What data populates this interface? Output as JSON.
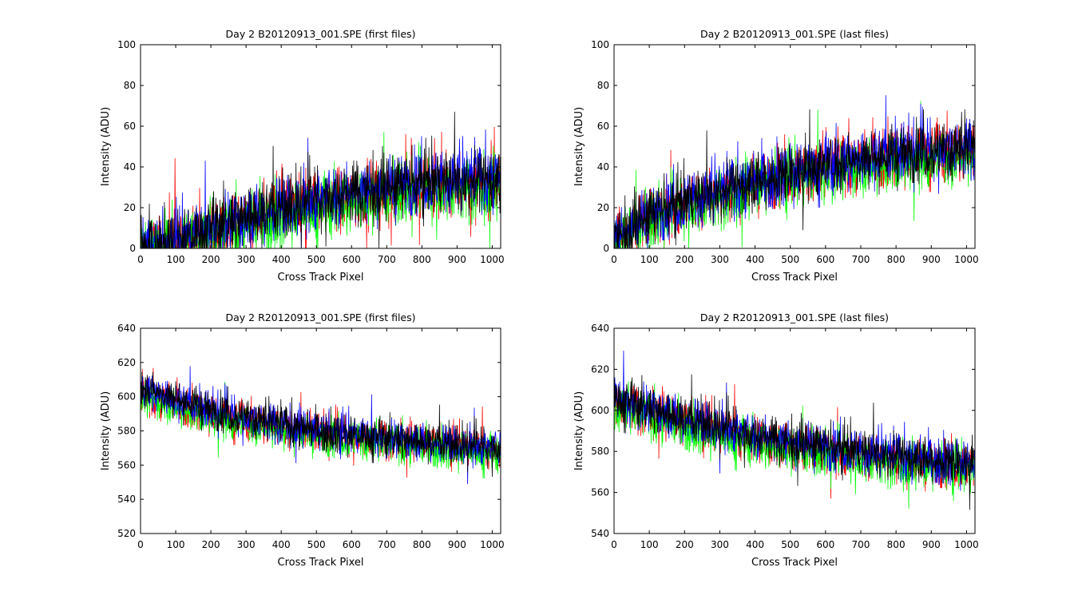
{
  "figure": {
    "background": "#ffffff",
    "axes_background": "#ffffff"
  },
  "chart_data": [
    {
      "type": "line",
      "title": "Day 2  B20120913_001.SPE (first files)",
      "xlabel": "Cross Track Pixel",
      "ylabel": "Intensity (ADU)",
      "xlim": [
        0,
        1024
      ],
      "ylim": [
        0,
        100
      ],
      "xticks": [
        0,
        100,
        200,
        300,
        400,
        500,
        600,
        700,
        800,
        900,
        1000
      ],
      "yticks": [
        0,
        20,
        40,
        60,
        80,
        100
      ],
      "grid": false,
      "legend": "none",
      "noise_amplitude": 14,
      "x": [
        0,
        30,
        100,
        200,
        300,
        400,
        500,
        600,
        700,
        800,
        900,
        1024
      ],
      "series": [
        {
          "color": "#ff0000",
          "values": [
            0,
            0,
            2,
            8,
            14,
            18,
            22,
            26,
            28,
            30,
            31,
            32
          ]
        },
        {
          "color": "#00ff00",
          "values": [
            0,
            0,
            2,
            6,
            12,
            16,
            20,
            23,
            26,
            28,
            29,
            30
          ]
        },
        {
          "color": "#0000ff",
          "values": [
            0,
            0,
            3,
            10,
            15,
            20,
            24,
            28,
            30,
            33,
            34,
            35
          ]
        },
        {
          "color": "#000000",
          "values": [
            0,
            0,
            3,
            10,
            16,
            20,
            24,
            28,
            30,
            32,
            33,
            34
          ]
        }
      ]
    },
    {
      "type": "line",
      "title": "Day 2  B20120913_001.SPE (last files)",
      "xlabel": "Cross Track Pixel",
      "ylabel": "Intensity (ADU)",
      "xlim": [
        0,
        1024
      ],
      "ylim": [
        0,
        100
      ],
      "xticks": [
        0,
        100,
        200,
        300,
        400,
        500,
        600,
        700,
        800,
        900,
        1000
      ],
      "yticks": [
        0,
        20,
        40,
        60,
        80,
        100
      ],
      "grid": false,
      "legend": "none",
      "noise_amplitude": 13,
      "x": [
        0,
        100,
        200,
        300,
        400,
        500,
        600,
        700,
        800,
        900,
        1024
      ],
      "series": [
        {
          "color": "#ff0000",
          "values": [
            5,
            15,
            22,
            27,
            32,
            36,
            40,
            43,
            46,
            48,
            48
          ]
        },
        {
          "color": "#00ff00",
          "values": [
            4,
            13,
            20,
            25,
            30,
            34,
            37,
            40,
            42,
            44,
            45
          ]
        },
        {
          "color": "#0000ff",
          "values": [
            5,
            16,
            23,
            28,
            33,
            37,
            41,
            44,
            47,
            49,
            50
          ]
        },
        {
          "color": "#000000",
          "values": [
            5,
            16,
            23,
            28,
            33,
            37,
            41,
            44,
            46,
            48,
            49
          ]
        }
      ]
    },
    {
      "type": "line",
      "title": "Day 2  R20120913_001.SPE (first files)",
      "xlabel": "Cross Track Pixel",
      "ylabel": "Intensity (ADU)",
      "xlim": [
        0,
        1024
      ],
      "ylim": [
        520,
        640
      ],
      "xticks": [
        0,
        100,
        200,
        300,
        400,
        500,
        600,
        700,
        800,
        900,
        1000
      ],
      "yticks": [
        520,
        540,
        560,
        580,
        600,
        620,
        640
      ],
      "grid": false,
      "legend": "none",
      "noise_amplitude": 10,
      "x": [
        0,
        100,
        200,
        300,
        400,
        500,
        600,
        700,
        800,
        900,
        1024
      ],
      "series": [
        {
          "color": "#ff0000",
          "values": [
            602,
            596,
            590,
            586,
            582,
            579,
            577,
            575,
            573,
            571,
            569
          ]
        },
        {
          "color": "#00ff00",
          "values": [
            600,
            594,
            588,
            584,
            580,
            577,
            575,
            573,
            571,
            569,
            567
          ]
        },
        {
          "color": "#0000ff",
          "values": [
            605,
            598,
            592,
            588,
            584,
            580,
            578,
            576,
            574,
            572,
            570
          ]
        },
        {
          "color": "#000000",
          "values": [
            606,
            599,
            592,
            588,
            584,
            580,
            578,
            576,
            574,
            572,
            570
          ]
        }
      ]
    },
    {
      "type": "line",
      "title": "Day 2  R20120913_001.SPE (last files)",
      "xlabel": "Cross Track Pixel",
      "ylabel": "Intensity (ADU)",
      "xlim": [
        0,
        1024
      ],
      "ylim": [
        540,
        640
      ],
      "xticks": [
        0,
        100,
        200,
        300,
        400,
        500,
        600,
        700,
        800,
        900,
        1000
      ],
      "yticks": [
        540,
        560,
        580,
        600,
        620,
        640
      ],
      "grid": false,
      "legend": "none",
      "noise_amplitude": 10,
      "x": [
        0,
        100,
        200,
        300,
        400,
        500,
        600,
        700,
        800,
        900,
        1024
      ],
      "series": [
        {
          "color": "#ff0000",
          "values": [
            604,
            599,
            594,
            590,
            586,
            583,
            580,
            578,
            576,
            574,
            572
          ]
        },
        {
          "color": "#00ff00",
          "values": [
            602,
            597,
            592,
            588,
            584,
            581,
            578,
            576,
            574,
            572,
            570
          ]
        },
        {
          "color": "#0000ff",
          "values": [
            606,
            601,
            596,
            592,
            588,
            585,
            582,
            580,
            578,
            576,
            574
          ]
        },
        {
          "color": "#000000",
          "values": [
            606,
            601,
            596,
            592,
            588,
            585,
            582,
            580,
            578,
            576,
            574
          ]
        }
      ]
    }
  ]
}
